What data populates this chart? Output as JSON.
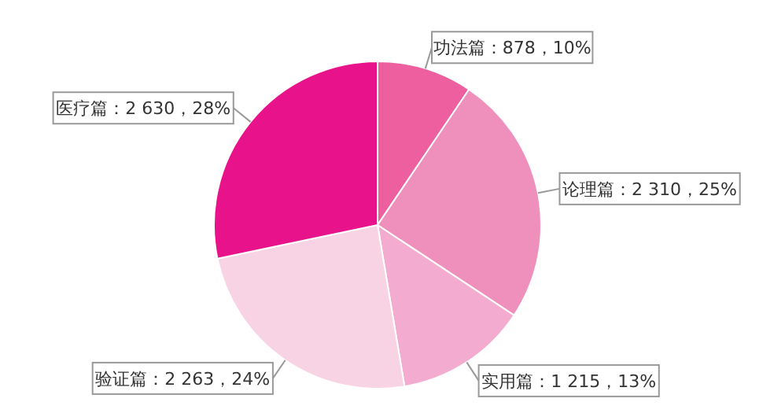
{
  "chart_data": {
    "type": "pie",
    "categories": [
      "功法篇",
      "论理篇",
      "实用篇",
      "验证篇",
      "医疗篇"
    ],
    "values": [
      878,
      2310,
      1215,
      2263,
      2630
    ],
    "colors": [
      "#ee5fa0",
      "#ef8fbb",
      "#f3acd0",
      "#f7d3e4",
      "#e8128a"
    ],
    "value_labels": [
      "878，10%",
      "2 310，25%",
      "1 215，13%",
      "2 263，24%",
      "2 630，28%"
    ],
    "legend": false
  }
}
